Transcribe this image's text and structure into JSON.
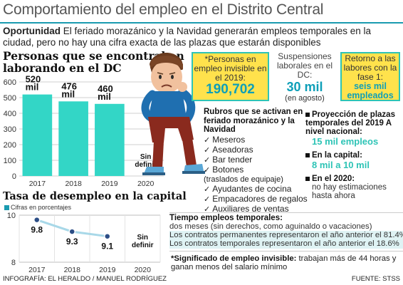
{
  "header": {
    "title": "Comportamiento del empleo en el Distrito Central",
    "intro_bold": "Oportunidad",
    "intro_text": " El feriado morazánico y la Navidad generarán empleos temporales en la ciudad, pero no hay una cifra exacta de las plazas que estarán disponibles"
  },
  "colors": {
    "accent": "#1a9bb0",
    "bar": "#33d6c6",
    "highlight_yellow": "#ffe24c",
    "value_teal": "#0e9fb8",
    "boy_shirt": "#1f6fb0"
  },
  "illustration": {
    "icon": "sad-boy-sitting-illustration"
  },
  "chart_data": [
    {
      "type": "bar",
      "title": "Personas que se encontraban laborando en el DC",
      "categories": [
        "2017",
        "2018",
        "2019",
        "2020"
      ],
      "values": [
        520,
        476,
        460,
        null
      ],
      "value_labels": [
        "520\nmil",
        "476\nmil",
        "460\nmil",
        "Sin\ndefinir"
      ],
      "ylim": [
        0,
        600
      ],
      "yticks": [
        0,
        100,
        200,
        300,
        400,
        500,
        600
      ],
      "grid": true
    },
    {
      "type": "line",
      "title": "Tasa de desempleo en la capital",
      "subtitle": "Cifras en porcentajes",
      "categories": [
        "2017",
        "2018",
        "2019",
        "2020"
      ],
      "values": [
        9.8,
        9.3,
        9.1,
        null
      ],
      "value_labels": [
        "9.8",
        "9.3",
        "9.1",
        "Sin\ndefinir"
      ],
      "ylim": [
        8,
        10
      ],
      "yticks": [
        8,
        10
      ],
      "grid": true
    }
  ],
  "boxes": {
    "invisible": {
      "label": "*Personas en empleo invisible en el 2019:",
      "value": "190,702"
    },
    "suspensiones": {
      "label": "Suspensiones laborales en el DC:",
      "value": "30 mil",
      "sub": "(en agosto)"
    },
    "retorno": {
      "label": "Retorno a las labores con la fase 1:",
      "value": "seis mil empleados"
    }
  },
  "rubros": {
    "heading": "Rubros que se activan en feriado morazánico y la Navidad",
    "items": [
      {
        "label": "Meseros",
        "sub": ""
      },
      {
        "label": "Aseadoras",
        "sub": ""
      },
      {
        "label": "Bar tender",
        "sub": ""
      },
      {
        "label": "Botones",
        "sub": "(traslados de equipaje)"
      },
      {
        "label": "Ayudantes de cocina",
        "sub": ""
      },
      {
        "label": "Empacadores de regalos",
        "sub": ""
      },
      {
        "label": "Auxiliares de ventas",
        "sub": ""
      }
    ]
  },
  "proyeccion": {
    "p1_label": "Proyección de plazas temporales del 2019 A nivel nacional:",
    "p1_value": "15 mil empleos",
    "p2_label": "En la capital:",
    "p2_value": "8 mil a 10 mil",
    "p3_label": "En el 2020:",
    "p3_note": "no hay estimaciones hasta ahora"
  },
  "tiempo": {
    "heading": "Tiempo empleos temporales:",
    "line1": "dos meses (sin derechos, como aguinaldo o vacaciones)",
    "line2": "Los contratos permanentes representaron el año anterior el 81.4%.",
    "line3": "Los contratos temporales representaron el año anterior el 18.6%"
  },
  "significado": {
    "bold": "*Significado de empleo invisible:",
    "text": " trabajan más de 44 horas y ganan menos del salario mínimo"
  },
  "footer": {
    "credit": "INFOGRAFÍA: EL HERALDO / MANUEL RODRÍGUEZ",
    "source": "FUENTE: STSS"
  }
}
